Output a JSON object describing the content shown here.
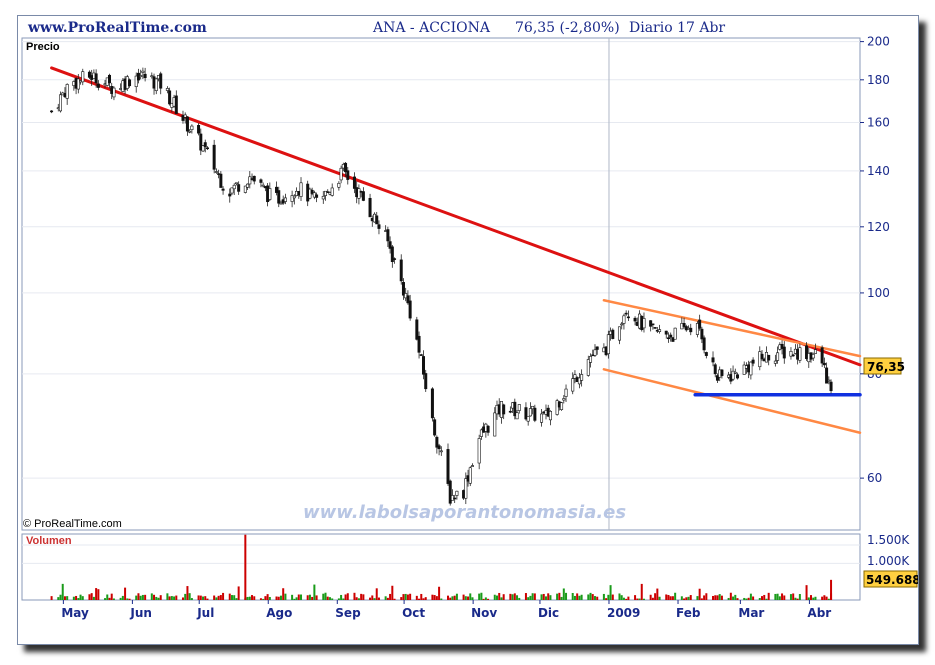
{
  "header": {
    "site": "www.ProRealTime.com",
    "title": "ANA - ACCIONA",
    "price": "76,35 (-2,80%)",
    "period": "Diario  17 Abr"
  },
  "price_panel_label": "Precio",
  "volume_panel_label": "Volumen",
  "copyright": "© ProRealTime.com",
  "watermark": "www.labolsaporantonomasia.es",
  "last_price_tag": "76,35",
  "last_volume_tag": "549.688",
  "colors": {
    "up": "#1a9b1a",
    "down": "#cc0000",
    "resistance": "#dd1111",
    "channel": "#ff8844",
    "support": "#1030e0",
    "axis_text": "#1a2a8a",
    "tag_bg": "#ffd040"
  },
  "chart_data": [
    {
      "type": "line",
      "title": "Precio",
      "x_axis": "time (daily, May 2008 – Apr 2009)",
      "x_tick_labels": [
        "May",
        "Jun",
        "Jul",
        "Ago",
        "Sep",
        "Oct",
        "Nov",
        "Dic",
        "2009",
        "Feb",
        "Mar",
        "Abr"
      ],
      "y_tick_labels": [
        "200",
        "180",
        "160",
        "140",
        "120",
        "100",
        "80",
        "60"
      ],
      "y_scale": "log",
      "ylim": [
        52,
        202
      ],
      "grid": true,
      "series": [
        {
          "x": [
            "2008-05-02",
            "2008-05-10",
            "2008-05-20",
            "2008-05-30",
            "2008-06-10",
            "2008-06-20",
            "2008-06-30",
            "2008-07-10",
            "2008-07-20",
            "2008-07-30",
            "2008-08-10",
            "2008-08-20",
            "2008-08-30",
            "2008-09-10",
            "2008-09-20",
            "2008-09-30",
            "2008-10-10",
            "2008-10-20",
            "2008-10-28",
            "2008-11-03",
            "2008-11-10",
            "2008-11-20",
            "2008-11-30",
            "2008-12-10",
            "2008-12-20",
            "2008-12-30",
            "2009-01-05",
            "2009-01-15",
            "2009-01-25",
            "2009-02-05",
            "2009-02-15",
            "2009-02-25",
            "2009-03-05",
            "2009-03-15",
            "2009-03-25",
            "2009-04-05",
            "2009-04-12",
            "2009-04-17"
          ],
          "values": [
            165,
            178,
            182,
            176,
            183,
            178,
            162,
            148,
            132,
            138,
            129,
            134,
            128,
            140,
            128,
            115,
            95,
            70,
            57,
            58,
            67,
            73,
            72,
            71,
            77,
            84,
            85,
            96,
            90,
            89,
            92,
            79,
            80,
            83,
            85,
            85,
            84,
            76.35
          ]
        }
      ],
      "trend_lines": [
        {
          "name": "resistance",
          "from": [
            "2008-05-02",
            186
          ],
          "to": [
            "2009-04-30",
            82
          ]
        },
        {
          "name": "channel-upper",
          "from": [
            "2009-01-05",
            98
          ],
          "to": [
            "2009-04-30",
            84
          ]
        },
        {
          "name": "channel-lower",
          "from": [
            "2009-01-05",
            81
          ],
          "to": [
            "2009-04-30",
            68
          ]
        },
        {
          "name": "support",
          "from": [
            "2009-02-15",
            75.5
          ],
          "to": [
            "2009-04-30",
            75.5
          ]
        }
      ]
    },
    {
      "type": "bar",
      "title": "Volumen",
      "y_tick_labels": [
        "1.500K",
        "1.000K"
      ],
      "ylim": [
        0,
        1800
      ],
      "spike": {
        "x": "2008-07-28",
        "value": 1780
      },
      "last_value": 549.688
    }
  ]
}
